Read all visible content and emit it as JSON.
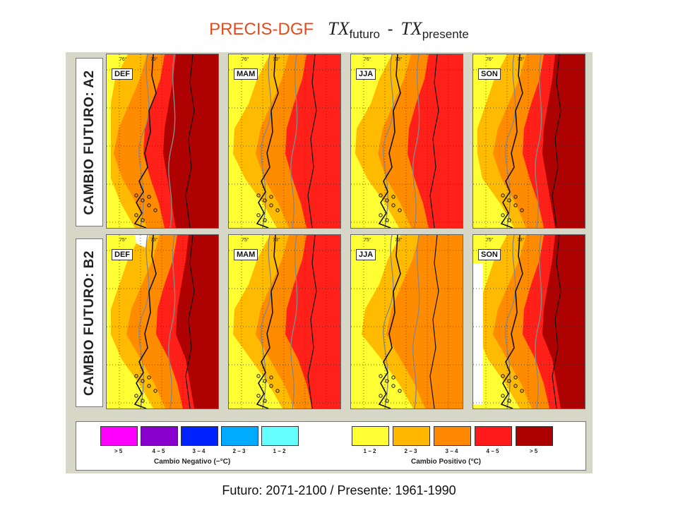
{
  "title": {
    "brand": "PRECIS-DGF",
    "var1": "TX",
    "sub1": "futuro",
    "minus": "-",
    "var2": "TX",
    "sub2": "presente"
  },
  "rows": [
    {
      "label": "CAMBIO FUTURO: A2",
      "panels": [
        {
          "season": "DEF",
          "lat_tick": "76°",
          "lon_tick": "73°"
        },
        {
          "season": "MAM",
          "lat_tick": "76°",
          "lon_tick": "73°"
        },
        {
          "season": "JJA",
          "lat_tick": "76°",
          "lon_tick": "73°"
        },
        {
          "season": "SON",
          "lat_tick": "76°",
          "lon_tick": "73°"
        }
      ]
    },
    {
      "label": "CAMBIO FUTURO: B2",
      "panels": [
        {
          "season": "DEF",
          "lat_tick": "75°",
          "lon_tick": "73°"
        },
        {
          "season": "MAM",
          "lat_tick": "75°",
          "lon_tick": "73°"
        },
        {
          "season": "JJA",
          "lat_tick": "75°",
          "lon_tick": "73°"
        },
        {
          "season": "SON",
          "lat_tick": "75°",
          "lon_tick": "73°"
        }
      ]
    }
  ],
  "legend": {
    "negative": {
      "caption": "Cambio Negativo (−°C)",
      "items": [
        {
          "label": "> 5",
          "color": "#ff00ff"
        },
        {
          "label": "4 − 5",
          "color": "#8800cc"
        },
        {
          "label": "3 − 4",
          "color": "#0022ff"
        },
        {
          "label": "2 − 3",
          "color": "#00aaff"
        },
        {
          "label": "1 − 2",
          "color": "#66ffff"
        }
      ]
    },
    "positive": {
      "caption": "Cambio Positivo (°C)",
      "items": [
        {
          "label": "1 − 2",
          "color": "#ffff33"
        },
        {
          "label": "2 − 3",
          "color": "#ffb700"
        },
        {
          "label": "3 − 4",
          "color": "#ff8800"
        },
        {
          "label": "4 − 5",
          "color": "#ff1a1a"
        },
        {
          "label": "> 5",
          "color": "#aa0000"
        }
      ]
    }
  },
  "footer": "Futuro: 2071-2100 / Presente: 1961-1990"
}
